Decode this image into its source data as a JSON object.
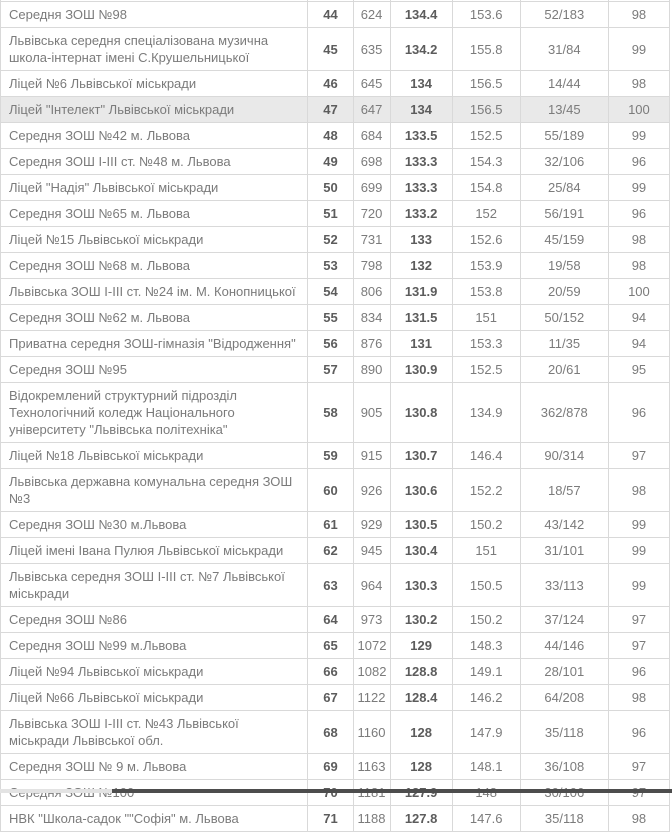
{
  "colors": {
    "border": "#d9d9d9",
    "text": "#7b7b7b",
    "text_bold": "#5c5c5c",
    "highlight_row": "#e9e9e9",
    "scrollbar_track": "#e3e3e3",
    "scrollbar_thumb": "#4d4d4d"
  },
  "table": {
    "rows": [
      {
        "highlighted": false,
        "cells": [
          "Середня ЗОШ №98",
          "44",
          "624",
          "134.4",
          "153.6",
          "52/183",
          "98"
        ]
      },
      {
        "highlighted": false,
        "cells": [
          "Львівська середня спеціалізована музична школа-інтернат імені С.Крушельницької",
          "45",
          "635",
          "134.2",
          "155.8",
          "31/84",
          "99"
        ]
      },
      {
        "highlighted": false,
        "cells": [
          "Ліцей №6 Львівської міськради",
          "46",
          "645",
          "134",
          "156.5",
          "14/44",
          "98"
        ]
      },
      {
        "highlighted": true,
        "cells": [
          "Ліцей \"Інтелект\" Львівської міськради",
          "47",
          "647",
          "134",
          "156.5",
          "13/45",
          "100"
        ]
      },
      {
        "highlighted": false,
        "cells": [
          "Середня ЗОШ №42 м. Львова",
          "48",
          "684",
          "133.5",
          "152.5",
          "55/189",
          "99"
        ]
      },
      {
        "highlighted": false,
        "cells": [
          "Середня ЗОШ І-ІІІ ст. №48 м. Львова",
          "49",
          "698",
          "133.3",
          "154.3",
          "32/106",
          "96"
        ]
      },
      {
        "highlighted": false,
        "cells": [
          "Ліцей \"Надія\" Львівської міськради",
          "50",
          "699",
          "133.3",
          "154.8",
          "25/84",
          "99"
        ]
      },
      {
        "highlighted": false,
        "cells": [
          "Середня ЗОШ №65 м. Львова",
          "51",
          "720",
          "133.2",
          "152",
          "56/191",
          "96"
        ]
      },
      {
        "highlighted": false,
        "cells": [
          "Ліцей №15 Львівської міськради",
          "52",
          "731",
          "133",
          "152.6",
          "45/159",
          "98"
        ]
      },
      {
        "highlighted": false,
        "cells": [
          "Середня ЗОШ №68 м. Львова",
          "53",
          "798",
          "132",
          "153.9",
          "19/58",
          "98"
        ]
      },
      {
        "highlighted": false,
        "cells": [
          "Львівська ЗОШ І-ІІІ ст. №24 ім. М. Конопницької",
          "54",
          "806",
          "131.9",
          "153.8",
          "20/59",
          "100"
        ]
      },
      {
        "highlighted": false,
        "cells": [
          "Середня ЗОШ №62 м. Львова",
          "55",
          "834",
          "131.5",
          "151",
          "50/152",
          "94"
        ]
      },
      {
        "highlighted": false,
        "cells": [
          "Приватна середня ЗОШ-гімназія \"Відродження\"",
          "56",
          "876",
          "131",
          "153.3",
          "11/35",
          "94"
        ]
      },
      {
        "highlighted": false,
        "cells": [
          "Середня ЗОШ №95",
          "57",
          "890",
          "130.9",
          "152.5",
          "20/61",
          "95"
        ]
      },
      {
        "highlighted": false,
        "cells": [
          "Відокремлений структурний підрозділ Технологічний коледж Національного університету \"Львівська політехніка\"",
          "58",
          "905",
          "130.8",
          "134.9",
          "362/878",
          "96"
        ]
      },
      {
        "highlighted": false,
        "cells": [
          "Ліцей №18 Львівської міськради",
          "59",
          "915",
          "130.7",
          "146.4",
          "90/314",
          "97"
        ]
      },
      {
        "highlighted": false,
        "cells": [
          "Львівська державна комунальна середня ЗОШ №3",
          "60",
          "926",
          "130.6",
          "152.2",
          "18/57",
          "98"
        ]
      },
      {
        "highlighted": false,
        "cells": [
          "Середня ЗОШ №30 м.Львова",
          "61",
          "929",
          "130.5",
          "150.2",
          "43/142",
          "99"
        ]
      },
      {
        "highlighted": false,
        "cells": [
          "Ліцей імені Івана Пулюя Львівської міськради",
          "62",
          "945",
          "130.4",
          "151",
          "31/101",
          "99"
        ]
      },
      {
        "highlighted": false,
        "cells": [
          "Львівська середня ЗОШ І-ІІІ ст. №7 Львівської міськради",
          "63",
          "964",
          "130.3",
          "150.5",
          "33/113",
          "99"
        ]
      },
      {
        "highlighted": false,
        "cells": [
          "Середня ЗОШ №86",
          "64",
          "973",
          "130.2",
          "150.2",
          "37/124",
          "97"
        ]
      },
      {
        "highlighted": false,
        "cells": [
          "Середня ЗОШ №99 м.Львова",
          "65",
          "1072",
          "129",
          "148.3",
          "44/146",
          "97"
        ]
      },
      {
        "highlighted": false,
        "cells": [
          "Ліцей №94 Львівської міськради",
          "66",
          "1082",
          "128.8",
          "149.1",
          "28/101",
          "96"
        ]
      },
      {
        "highlighted": false,
        "cells": [
          "Ліцей №66 Львівської міськради",
          "67",
          "1122",
          "128.4",
          "146.2",
          "64/208",
          "98"
        ]
      },
      {
        "highlighted": false,
        "cells": [
          "Львівська ЗОШ І-ІІІ ст. №43 Львівської міськради Львівської обл.",
          "68",
          "1160",
          "128",
          "147.9",
          "35/118",
          "96"
        ]
      },
      {
        "highlighted": false,
        "cells": [
          "Середня ЗОШ № 9 м. Львова",
          "69",
          "1163",
          "128",
          "148.1",
          "36/108",
          "97"
        ]
      },
      {
        "highlighted": false,
        "cells": [
          "Середня ЗОШ №100",
          "70",
          "1181",
          "127.9",
          "148",
          "30/106",
          "97"
        ]
      },
      {
        "highlighted": false,
        "cells": [
          "НВК \"Школа-садок \"\"Софія\" м. Львова",
          "71",
          "1188",
          "127.8",
          "147.6",
          "35/118",
          "98"
        ]
      }
    ]
  }
}
